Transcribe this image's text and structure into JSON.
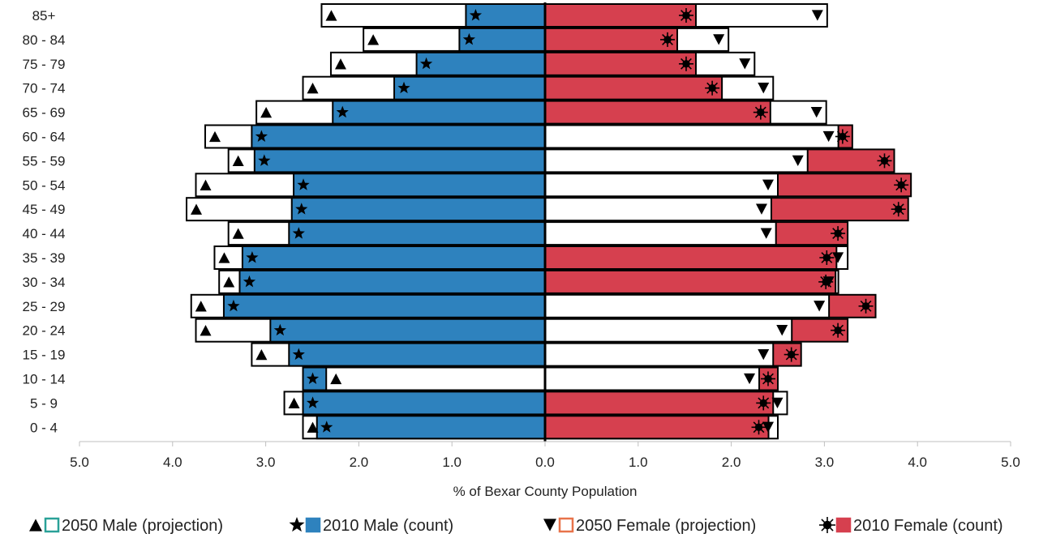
{
  "chart_data": {
    "type": "bar",
    "orientation": "horizontal",
    "title": "",
    "xlabel": "% of Bexar County Population",
    "ylabel": "",
    "xlim": [
      -5,
      5
    ],
    "x_ticks": [
      -5,
      -4,
      -3,
      -2,
      -1,
      0,
      1,
      2,
      3,
      4,
      5
    ],
    "x_tick_labels": [
      "5.0",
      "4.0",
      "3.0",
      "2.0",
      "1.0",
      "0.0",
      "1.0",
      "2.0",
      "3.0",
      "4.0",
      "5.0"
    ],
    "categories": [
      "85+",
      "80 - 84",
      "75 - 79",
      "70 - 74",
      "65 - 69",
      "60 - 64",
      "55 - 59",
      "50 - 54",
      "45 - 49",
      "40 - 44",
      "35 - 39",
      "30 - 34",
      "25 - 29",
      "20 - 24",
      "15 - 19",
      "10 - 14",
      "5 - 9",
      "0 - 4"
    ],
    "series": [
      {
        "name": "2050 Male (projection)",
        "side": "left",
        "marker": "triangle-up",
        "color": "#ffffff",
        "values": [
          2.4,
          1.95,
          2.3,
          2.6,
          3.1,
          3.65,
          3.4,
          3.75,
          3.85,
          3.4,
          3.55,
          3.5,
          3.8,
          3.75,
          3.15,
          2.35,
          2.8,
          2.6
        ]
      },
      {
        "name": "2010 Male (count)",
        "side": "left",
        "marker": "star",
        "color": "#2e82be",
        "values": [
          0.85,
          0.92,
          1.38,
          1.62,
          2.28,
          3.15,
          3.12,
          2.7,
          2.72,
          2.75,
          3.25,
          3.28,
          3.45,
          2.95,
          2.75,
          2.6,
          2.6,
          2.45
        ]
      },
      {
        "name": "2050 Female (projection)",
        "side": "right",
        "marker": "triangle-down",
        "color": "#ffffff",
        "values": [
          3.03,
          1.97,
          2.25,
          2.45,
          3.02,
          3.15,
          2.82,
          2.5,
          2.43,
          2.48,
          3.25,
          3.15,
          3.05,
          2.65,
          2.45,
          2.3,
          2.6,
          2.5
        ]
      },
      {
        "name": "2010 Female (count)",
        "side": "right",
        "marker": "sun",
        "color": "#d6404f",
        "values": [
          1.62,
          1.42,
          1.62,
          1.9,
          2.42,
          3.3,
          3.75,
          3.93,
          3.9,
          3.25,
          3.13,
          3.12,
          3.55,
          3.25,
          2.75,
          2.5,
          2.45,
          2.4
        ]
      }
    ],
    "legend": {
      "position": "bottom",
      "items": [
        {
          "label": "2050 Male (projection)",
          "marker": "triangle-up",
          "fill": "#ffffff",
          "stroke": "#2aa198"
        },
        {
          "label": "2010 Male (count)",
          "marker": "star",
          "fill": "#2e82be",
          "stroke": "#2e82be"
        },
        {
          "label": "2050 Female (projection)",
          "marker": "triangle-down",
          "fill": "#ffffff",
          "stroke": "#e8734a"
        },
        {
          "label": "2010 Female (count)",
          "marker": "sun",
          "fill": "#d6404f",
          "stroke": "#d6404f"
        }
      ]
    },
    "grid": false
  }
}
